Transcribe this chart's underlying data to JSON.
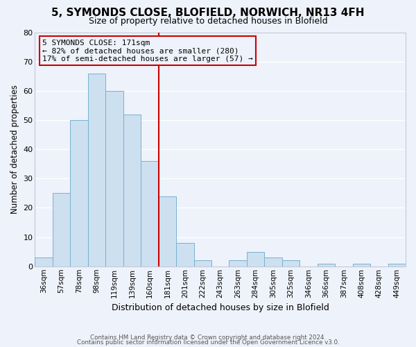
{
  "title": "5, SYMONDS CLOSE, BLOFIELD, NORWICH, NR13 4FH",
  "subtitle": "Size of property relative to detached houses in Blofield",
  "xlabel": "Distribution of detached houses by size in Blofield",
  "ylabel": "Number of detached properties",
  "bar_labels": [
    "36sqm",
    "57sqm",
    "78sqm",
    "98sqm",
    "119sqm",
    "139sqm",
    "160sqm",
    "181sqm",
    "201sqm",
    "222sqm",
    "243sqm",
    "263sqm",
    "284sqm",
    "305sqm",
    "325sqm",
    "346sqm",
    "366sqm",
    "387sqm",
    "408sqm",
    "428sqm",
    "449sqm"
  ],
  "bar_values": [
    3,
    25,
    50,
    66,
    60,
    52,
    36,
    24,
    8,
    2,
    0,
    2,
    5,
    3,
    2,
    0,
    1,
    0,
    1,
    0,
    1
  ],
  "bar_color": "#cce0f0",
  "bar_edge_color": "#7ab0d0",
  "vline_index": 7,
  "vline_color": "#cc0000",
  "annotation_lines": [
    "5 SYMONDS CLOSE: 171sqm",
    "← 82% of detached houses are smaller (280)",
    "17% of semi-detached houses are larger (57) →"
  ],
  "ylim": [
    0,
    80
  ],
  "yticks": [
    0,
    10,
    20,
    30,
    40,
    50,
    60,
    70,
    80
  ],
  "background_color": "#eef2fa",
  "grid_color": "#ffffff",
  "title_fontsize": 11,
  "subtitle_fontsize": 9,
  "footer_line1": "Contains HM Land Registry data © Crown copyright and database right 2024.",
  "footer_line2": "Contains public sector information licensed under the Open Government Licence v3.0."
}
